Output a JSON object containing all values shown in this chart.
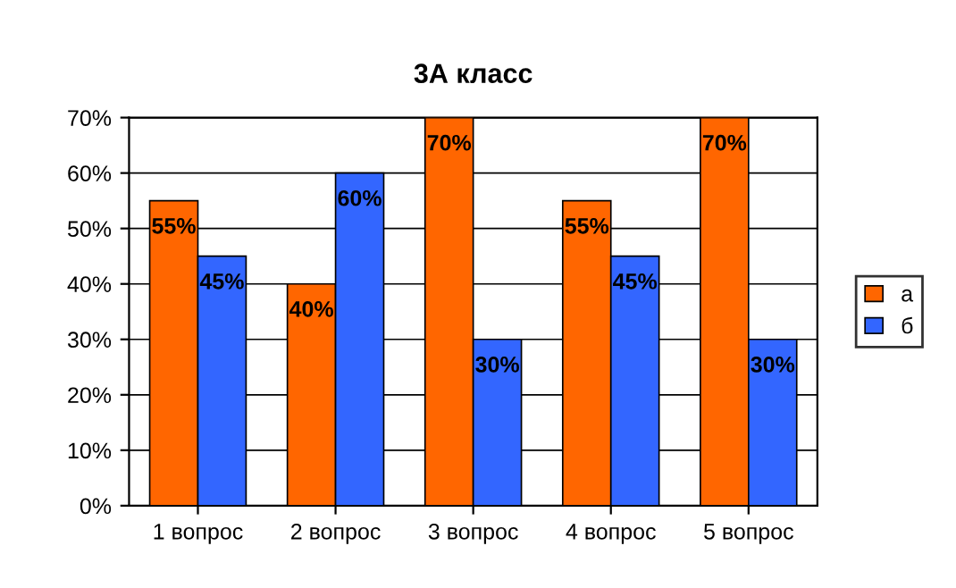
{
  "chart_data": {
    "type": "bar",
    "title": "3А класс",
    "categories": [
      "1 вопрос",
      "2 вопрос",
      "3 вопрос",
      "4 вопрос",
      "5 вопрос"
    ],
    "series": [
      {
        "name": "а",
        "color": "#ff6600",
        "values": [
          55,
          40,
          70,
          55,
          70
        ],
        "value_labels": [
          "55%",
          "40%",
          "70%",
          "55%",
          "70%"
        ]
      },
      {
        "name": "б",
        "color": "#3366ff",
        "values": [
          45,
          60,
          30,
          45,
          30
        ],
        "value_labels": [
          "45%",
          "60%",
          "30%",
          "45%",
          "30%"
        ]
      }
    ],
    "ylim": [
      0,
      70
    ],
    "yticks": [
      {
        "value": 0,
        "label": "0%"
      },
      {
        "value": 10,
        "label": "10%"
      },
      {
        "value": 20,
        "label": "20%"
      },
      {
        "value": 30,
        "label": "30%"
      },
      {
        "value": 40,
        "label": "40%"
      },
      {
        "value": 50,
        "label": "50%"
      },
      {
        "value": 60,
        "label": "60%"
      },
      {
        "value": 70,
        "label": "70%"
      }
    ],
    "grid": "y",
    "legend": "right"
  }
}
